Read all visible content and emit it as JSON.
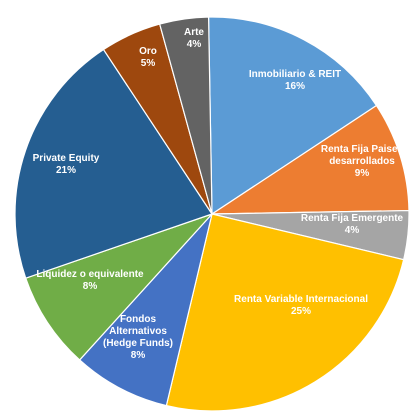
{
  "chart_data": {
    "type": "pie",
    "title": "",
    "start_angle_deg": -1,
    "direction": "clockwise",
    "legend": "none",
    "slices": [
      {
        "label": "Inmobiliario & REIT",
        "value": 16,
        "value_label": "16%",
        "color": "#5B9BD5"
      },
      {
        "label": "Renta Fija Paises desarrollados",
        "value": 9,
        "value_label": "9%",
        "color": "#ED7D31"
      },
      {
        "label": "Renta Fija Emergente",
        "value": 4,
        "value_label": "4%",
        "color": "#A5A5A5"
      },
      {
        "label": "Renta Variable Internacional",
        "value": 25,
        "value_label": "25%",
        "color": "#FFC000"
      },
      {
        "label": "Fondos Alternativos (Hedge Funds)",
        "value": 8,
        "value_label": "8%",
        "color": "#4472C4"
      },
      {
        "label": "Liquidez o equivalente",
        "value": 8,
        "value_label": "8%",
        "color": "#70AD47"
      },
      {
        "label": "Private Equity",
        "value": 21,
        "value_label": "21%",
        "color": "#255E91"
      },
      {
        "label": "Oro",
        "value": 5,
        "value_label": "5%",
        "color": "#9E480E"
      },
      {
        "label": "Arte",
        "value": 4,
        "value_label": "4%",
        "color": "#636363"
      }
    ]
  }
}
